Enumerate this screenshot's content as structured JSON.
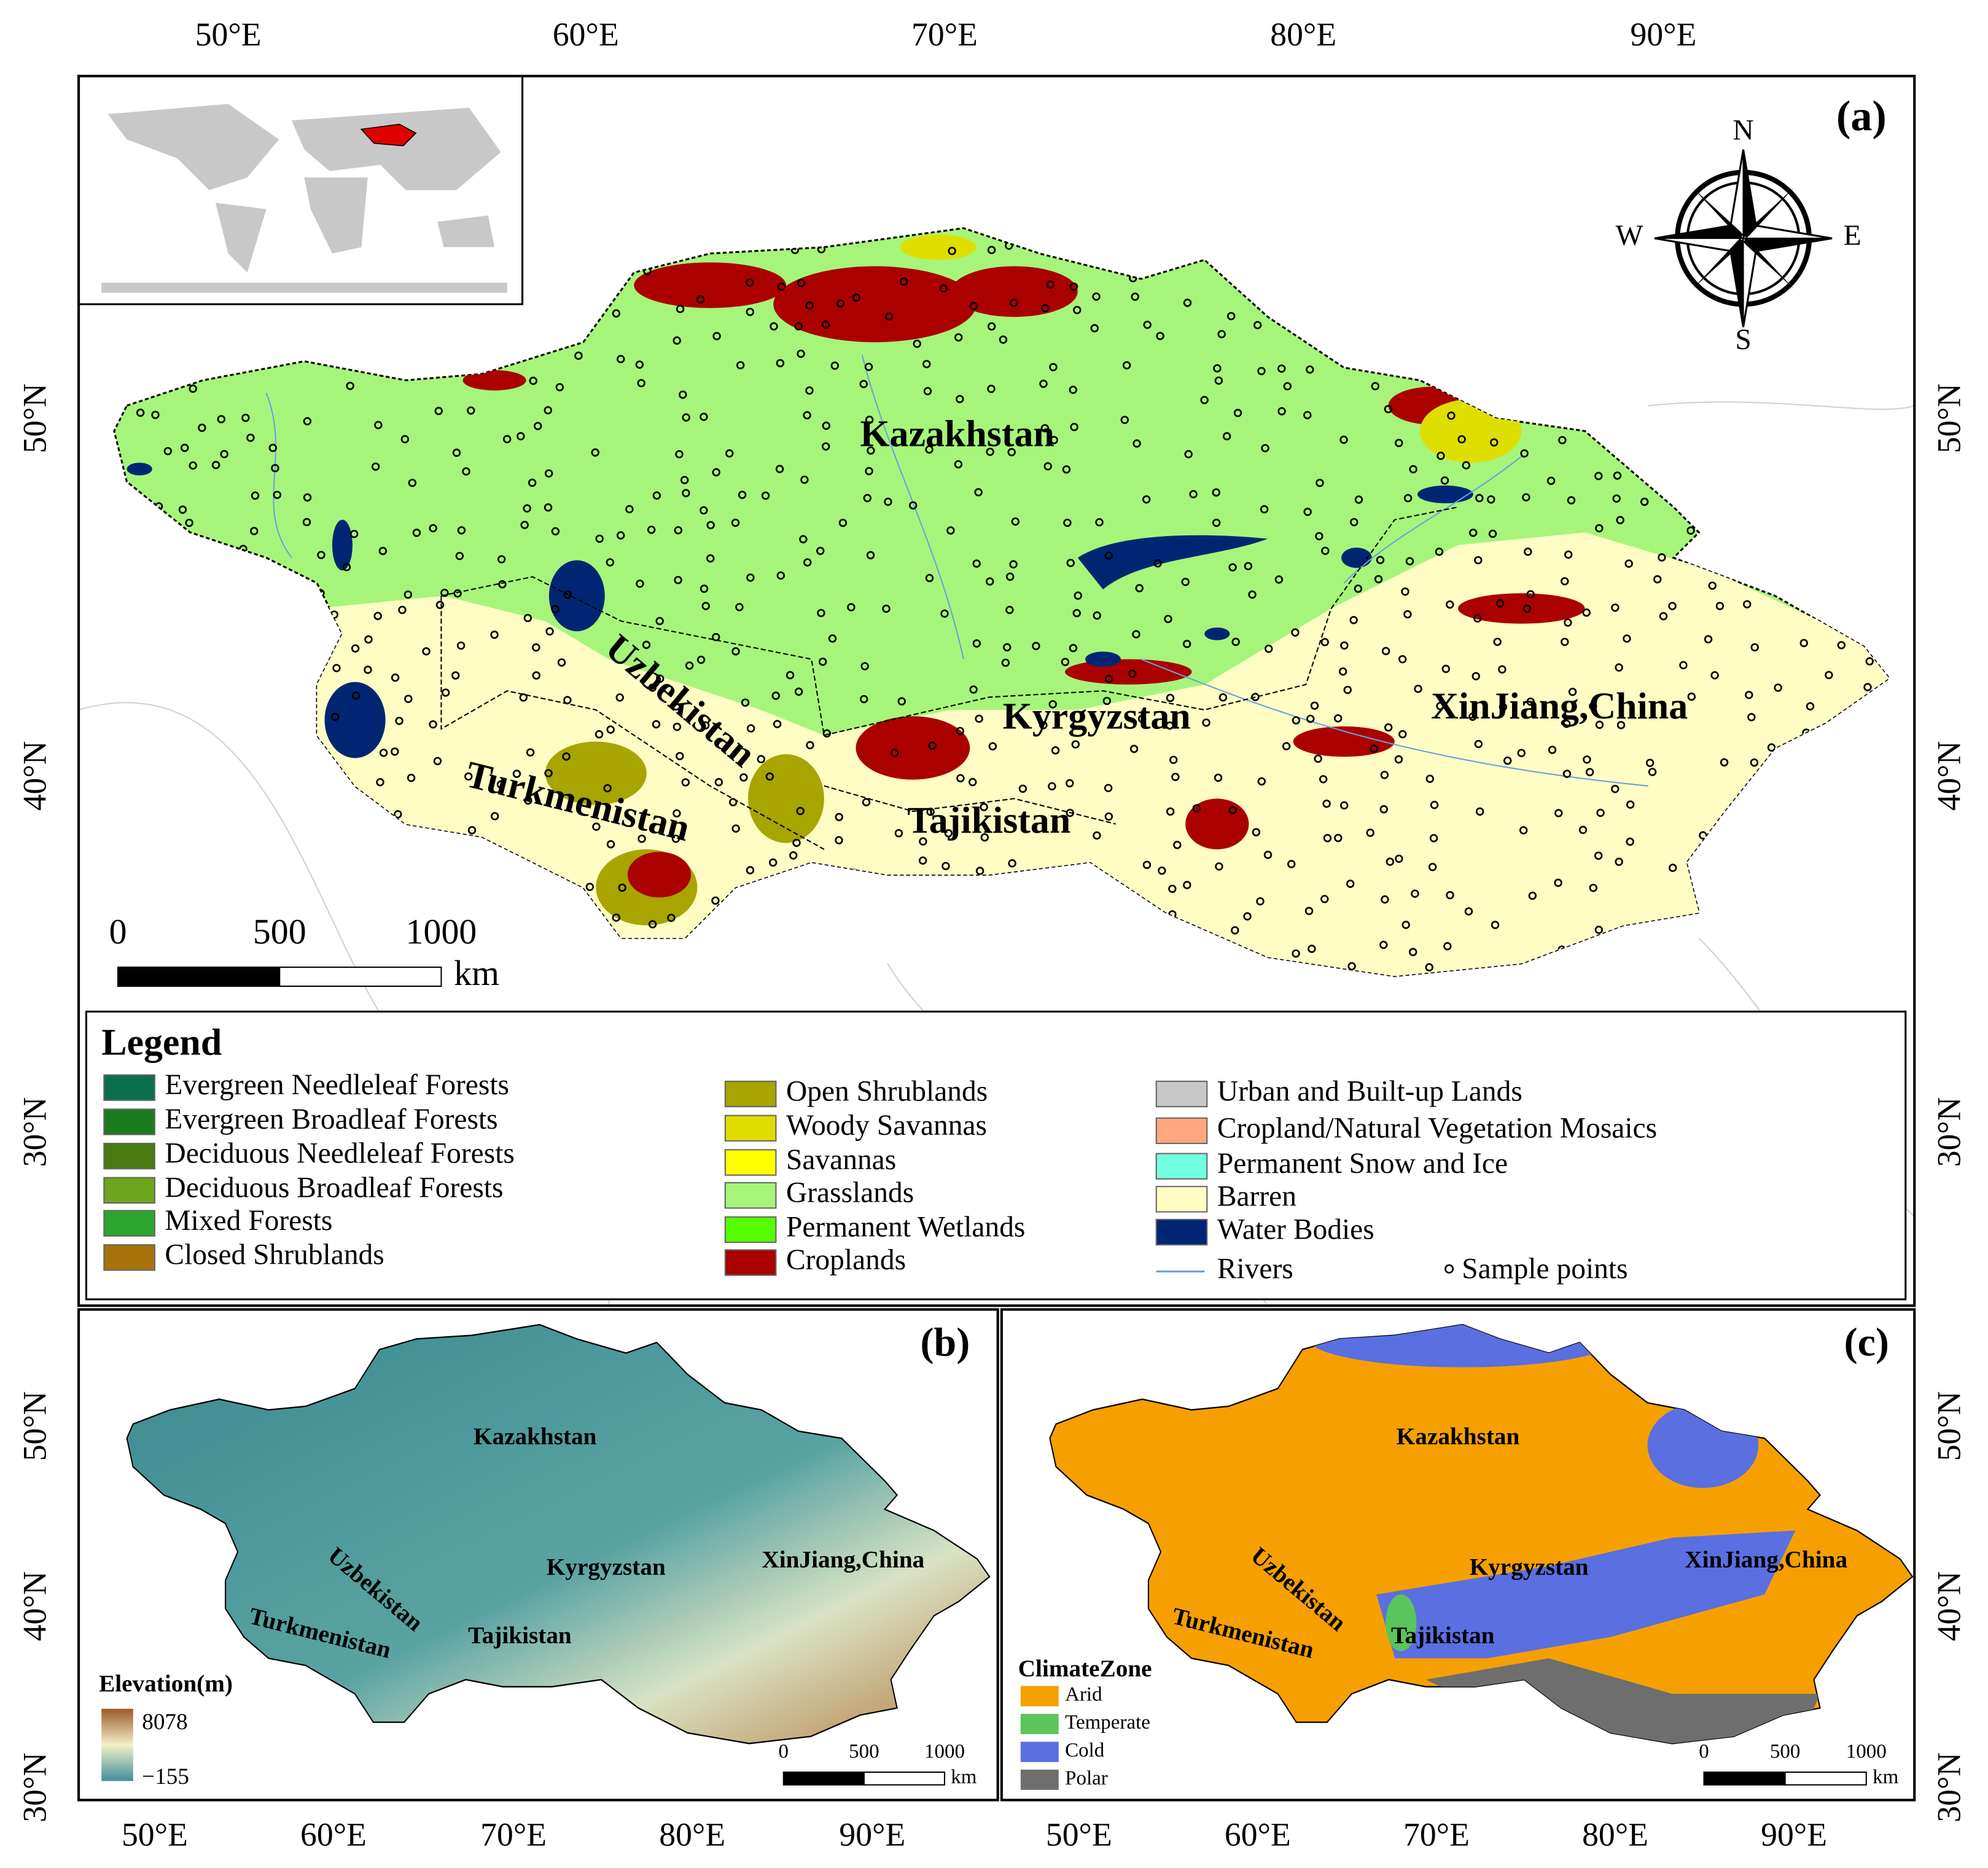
{
  "axes": {
    "a": {
      "top": [
        "50°E",
        "60°E",
        "70°E",
        "80°E",
        "90°E"
      ],
      "left": [
        "50°N",
        "40°N",
        "30°N"
      ],
      "right": [
        "50°N",
        "40°N",
        "30°N"
      ]
    },
    "b": {
      "bottom": [
        "50°E",
        "60°E",
        "70°E",
        "80°E",
        "90°E"
      ],
      "left": [
        "50°N",
        "40°N",
        "30°N"
      ]
    },
    "c": {
      "bottom": [
        "50°E",
        "60°E",
        "70°E",
        "80°E",
        "90°E"
      ],
      "right": [
        "50°N",
        "40°N",
        "30°N"
      ]
    }
  },
  "panel_a": {
    "label": "(a)",
    "countries": [
      "Kazakhstan",
      "Uzbekistan",
      "Turkmenistan",
      "Kyrgyzstan",
      "Tajikistan",
      "XinJiang,China"
    ],
    "compass": {
      "n": "N",
      "s": "S",
      "e": "E",
      "w": "W"
    },
    "scale_bar": {
      "ticks": [
        0,
        500,
        1000
      ],
      "unit": "km"
    },
    "legend": {
      "title": "Legend",
      "items": [
        {
          "label": "Evergreen Needleleaf Forests",
          "color": "#0b6e4f"
        },
        {
          "label": "Evergreen Broadleaf Forests",
          "color": "#1b7a1b"
        },
        {
          "label": "Deciduous Needleleaf Forests",
          "color": "#4a7a12"
        },
        {
          "label": "Deciduous Broadleaf Forests",
          "color": "#6ea51e"
        },
        {
          "label": "Mixed Forests",
          "color": "#2da52d"
        },
        {
          "label": "Closed Shrublands",
          "color": "#a8720a"
        },
        {
          "label": "Open Shrublands",
          "color": "#a8a400"
        },
        {
          "label": "Woody Savannas",
          "color": "#dede00"
        },
        {
          "label": "Savannas",
          "color": "#ffff00"
        },
        {
          "label": "Grasslands",
          "color": "#a6f57a"
        },
        {
          "label": "Permanent Wetlands",
          "color": "#55ff00"
        },
        {
          "label": "Croplands",
          "color": "#aa0000"
        },
        {
          "label": "Urban and Built-up Lands",
          "color": "#c8c8c8"
        },
        {
          "label": "Cropland/Natural Vegetation Mosaics",
          "color": "#ffa77f"
        },
        {
          "label": "Permanent Snow and Ice",
          "color": "#73ffdf"
        },
        {
          "label": "Barren",
          "color": "#fffcc4"
        },
        {
          "label": "Water Bodies",
          "color": "#002673"
        }
      ],
      "rivers": "Rivers",
      "sample_points": "Sample points"
    }
  },
  "panel_b": {
    "label": "(b)",
    "countries": [
      "Kazakhstan",
      "Uzbekistan",
      "Turkmenistan",
      "Kyrgyzstan",
      "Tajikistan",
      "XinJiang,China"
    ],
    "elevation": {
      "title": "Elevation(m)",
      "max": 8078,
      "min": {
        "value": -155,
        "label": "−155"
      }
    },
    "scale_bar": {
      "ticks": [
        0,
        500,
        1000
      ],
      "unit": "km"
    }
  },
  "panel_c": {
    "label": "(c)",
    "countries": [
      "Kazakhstan",
      "Uzbekistan",
      "Turkmenistan",
      "Kyrgyzstan",
      "Tajikistan",
      "XinJiang,China"
    ],
    "climate": {
      "title": "ClimateZone",
      "items": [
        {
          "label": "Arid",
          "color": "#f5a000"
        },
        {
          "label": "Temperate",
          "color": "#5cc45c"
        },
        {
          "label": "Cold",
          "color": "#5a6fe0"
        },
        {
          "label": "Polar",
          "color": "#6e6e6e"
        }
      ]
    },
    "scale_bar": {
      "ticks": [
        0,
        500,
        1000
      ],
      "unit": "km"
    }
  }
}
